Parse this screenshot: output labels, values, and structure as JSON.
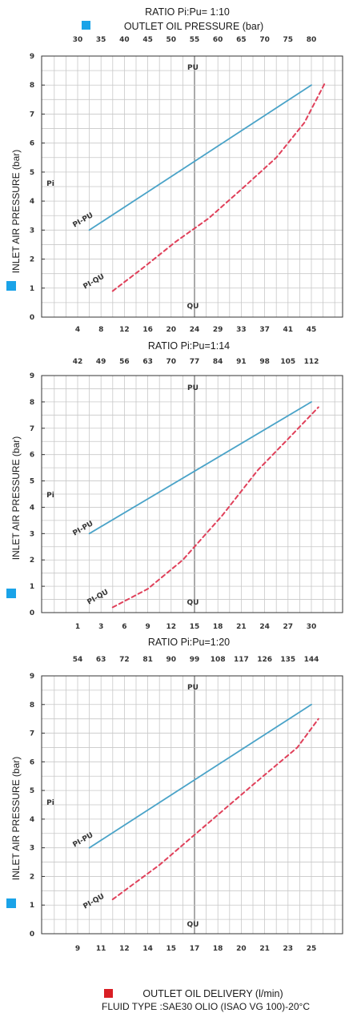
{
  "colors": {
    "pu": "#4aa3c8",
    "qu": "#e0405a",
    "air_marker": "#1aa3e8",
    "delivery_marker": "#d91e24",
    "pressure_marker": "#1aa3e8"
  },
  "header": {
    "pressure_axis_title": "OUTLET OIL PRESSURE (bar)"
  },
  "footer": {
    "delivery_axis_title": "OUTLET OIL DELIVERY (l/min)",
    "fluid_type": "FLUID TYPE :SAE30 OLIO (ISAO VG 100)-20°C"
  },
  "chart_data": [
    {
      "type": "line",
      "title": "RATIO Pi:Pu= 1:10",
      "ylabel": "INLET AIR PRESSURE (bar)",
      "ylim": [
        0,
        9
      ],
      "y_ticks": [
        "0",
        "1",
        "2",
        "3",
        "4",
        "5",
        "6",
        "7",
        "8",
        "9"
      ],
      "top_ticks": [
        "30",
        "35",
        "40",
        "45",
        "50",
        "55",
        "60",
        "65",
        "70",
        "75",
        "80"
      ],
      "bottom_ticks": [
        "4",
        "8",
        "12",
        "16",
        "20",
        "24",
        "29",
        "33",
        "37",
        "41",
        "45"
      ],
      "grid": true,
      "labels": {
        "top_axis": "PU",
        "bottom_axis": "QU",
        "left_axis": "Pi"
      },
      "series": [
        {
          "name": "PI-PU",
          "label": "PI-PU",
          "style": "solid",
          "x": [
            0.5,
            10
          ],
          "y": [
            3.0,
            8.0
          ]
        },
        {
          "name": "PI-QU",
          "label": "PI-QU",
          "style": "dashed",
          "x": [
            1.5,
            2.8,
            4.2,
            5.6,
            7.0,
            8.5,
            9.7,
            10.6
          ],
          "y": [
            0.9,
            1.7,
            2.6,
            3.4,
            4.4,
            5.5,
            6.7,
            8.1
          ]
        }
      ]
    },
    {
      "type": "line",
      "title": "RATIO Pi:Pu=1:14",
      "ylabel": "INLET AIR PRESSURE (bar)",
      "ylim": [
        0,
        9
      ],
      "y_ticks": [
        "0",
        "1",
        "2",
        "3",
        "4",
        "5",
        "6",
        "7",
        "8",
        "9"
      ],
      "top_ticks": [
        "42",
        "49",
        "56",
        "63",
        "70",
        "77",
        "84",
        "91",
        "98",
        "105",
        "112"
      ],
      "bottom_ticks": [
        "1",
        "3",
        "6",
        "9",
        "12",
        "15",
        "18",
        "21",
        "24",
        "27",
        "30"
      ],
      "grid": true,
      "labels": {
        "top_axis": "PU",
        "bottom_axis": "QU",
        "left_axis": "Pi"
      },
      "series": [
        {
          "name": "PI-PU",
          "label": "PI-PU",
          "style": "solid",
          "x": [
            0.5,
            10
          ],
          "y": [
            3.0,
            8.0
          ]
        },
        {
          "name": "PI-QU",
          "label": "PI-QU",
          "style": "dashed",
          "x": [
            1.5,
            3.0,
            4.5,
            6.2,
            7.7,
            8.9,
            10.3
          ],
          "y": [
            0.2,
            0.9,
            2.0,
            3.7,
            5.4,
            6.5,
            7.8
          ]
        }
      ]
    },
    {
      "type": "line",
      "title": "RATIO Pi:Pu=1:20",
      "ylabel": "INLET AIR PRESSURE (bar)",
      "ylim": [
        0,
        9
      ],
      "y_ticks": [
        "0",
        "1",
        "2",
        "3",
        "4",
        "5",
        "6",
        "7",
        "8",
        "9"
      ],
      "top_ticks": [
        "54",
        "63",
        "72",
        "81",
        "90",
        "99",
        "108",
        "117",
        "126",
        "135",
        "144"
      ],
      "bottom_ticks": [
        "9",
        "11",
        "12",
        "14",
        "15",
        "17",
        "18",
        "20",
        "21",
        "23",
        "25"
      ],
      "grid": true,
      "labels": {
        "top_axis": "PU",
        "bottom_axis": "QU",
        "left_axis": "Pi"
      },
      "series": [
        {
          "name": "PI-PU",
          "label": "PI-PU",
          "style": "solid",
          "x": [
            0.5,
            10
          ],
          "y": [
            3.0,
            8.0
          ]
        },
        {
          "name": "PI-QU",
          "label": "PI-QU",
          "style": "dashed",
          "x": [
            1.5,
            3.5,
            5.5,
            7.5,
            9.4,
            10.3
          ],
          "y": [
            1.2,
            2.4,
            3.8,
            5.2,
            6.5,
            7.5
          ]
        }
      ]
    }
  ]
}
